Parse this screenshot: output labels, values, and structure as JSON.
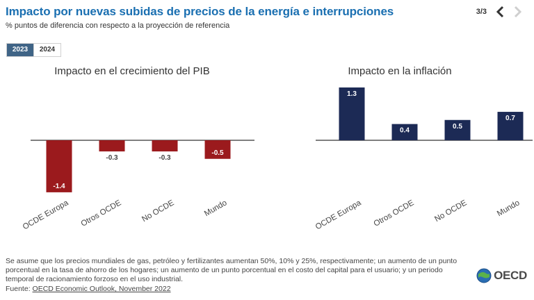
{
  "header": {
    "title": "Impacto por nuevas subidas de precios de la energía e interrupciones",
    "subtitle": "% puntos de diferencia con respecto a la proyección de referencia",
    "page_indicator": "3/3"
  },
  "tabs": [
    {
      "label": "2023",
      "active": true
    },
    {
      "label": "2024",
      "active": false
    }
  ],
  "colors": {
    "title": "#1a6fb1",
    "gdp_bars": "#9b1a1d",
    "inflation_bars": "#1c2a55",
    "tab_active": "#3f6486"
  },
  "chart_data": [
    {
      "type": "bar",
      "title": "Impacto en el crecimiento del PIB",
      "categories": [
        "OCDE Europa",
        "Otros OCDE",
        "No OCDE",
        "Mundo"
      ],
      "values": [
        -1.4,
        -0.3,
        -0.3,
        -0.5
      ],
      "labels": [
        "-1.4",
        "-0.3",
        "-0.3",
        "-0.5"
      ],
      "xlabel": "",
      "ylabel": "",
      "grid": false
    },
    {
      "type": "bar",
      "title": "Impacto en la inflación",
      "categories": [
        "OCDE Europa",
        "Otros OCDE",
        "No OCDE",
        "Mundo"
      ],
      "values": [
        1.3,
        0.4,
        0.5,
        0.7
      ],
      "labels": [
        "1.3",
        "0.4",
        "0.5",
        "0.7"
      ],
      "xlabel": "",
      "ylabel": "",
      "grid": false
    }
  ],
  "footer": {
    "note": "Se asume que los precios mundiales de gas, petróleo y fertilizantes aumentan 50%, 10% y 25%, respectivamente; un aumento de un punto porcentual en la tasa de ahorro de los hogares; un aumento de un punto porcentual en el costo del capital para el usuario; y un periodo temporal de racionamiento forzoso en el uso industrial.",
    "source_label": "Fuente: ",
    "source_link": "OECD Economic Outlook, November 2022",
    "logo_text": "OECD"
  }
}
